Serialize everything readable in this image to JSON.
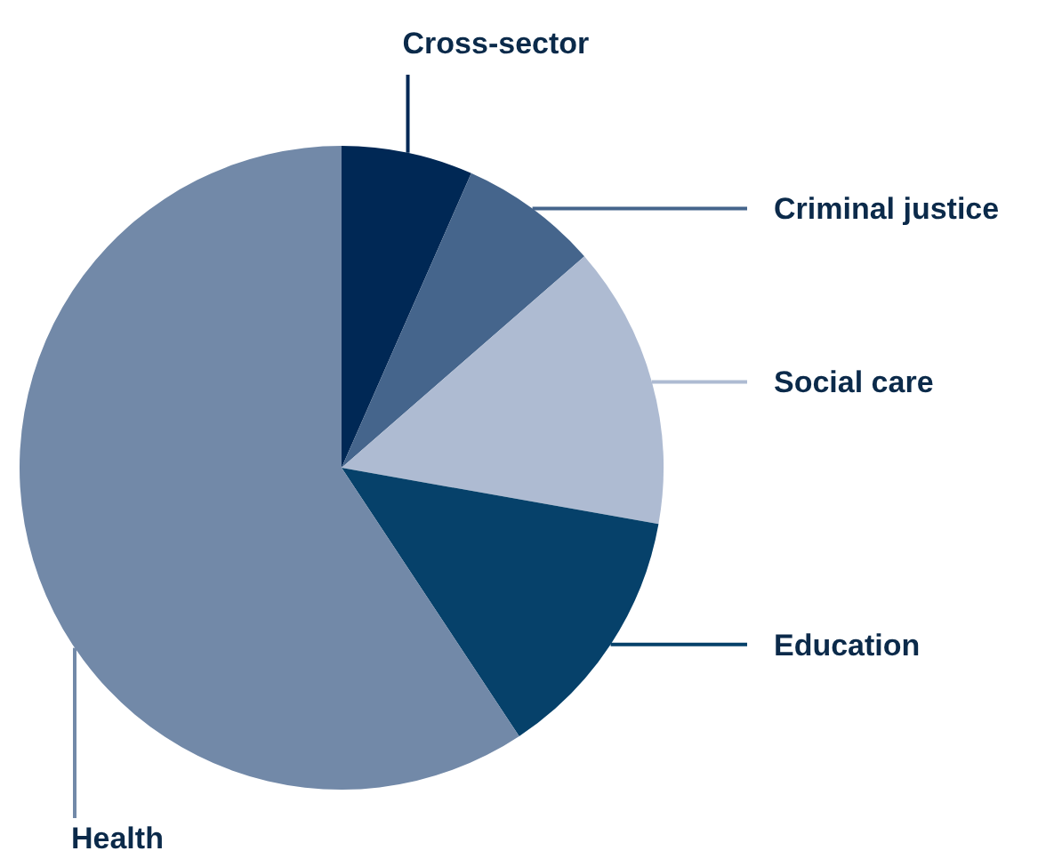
{
  "chart_data": {
    "type": "pie",
    "categories": [
      "Cross-sector",
      "Criminal justice",
      "Social care",
      "Education",
      "Health"
    ],
    "values": [
      6.6,
      7.0,
      14.2,
      12.9,
      59.3
    ],
    "colors": [
      "#002855",
      "#45658c",
      "#aebbd2",
      "#06416a",
      "#7289a8"
    ],
    "legend": false
  }
}
